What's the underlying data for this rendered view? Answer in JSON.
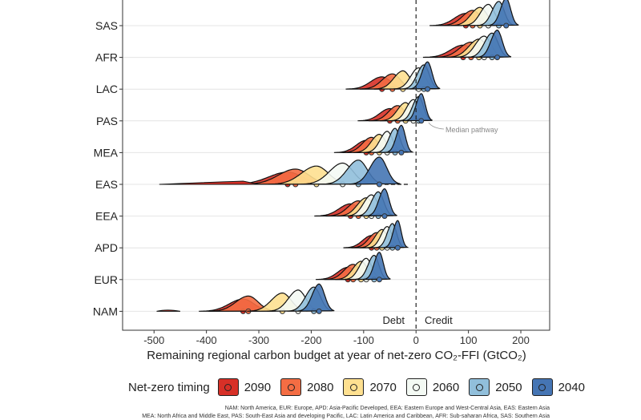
{
  "chart_data": {
    "type": "ridgeline",
    "title": "",
    "xlabel": "Remaining regional carbon budget at year of net-zero CO₂-FFI (GtCO₂)",
    "xlim": [
      -560,
      255
    ],
    "x_ticks": [
      -500,
      -400,
      -300,
      -200,
      -100,
      0,
      100,
      200
    ],
    "x_tick_labels": [
      "-500",
      "-400",
      "-300",
      "-200",
      "-100",
      "0",
      "100",
      "200"
    ],
    "regions": [
      "SAS",
      "AFR",
      "LAC",
      "PAS",
      "MEA",
      "EAS",
      "EEA",
      "APD",
      "EUR",
      "NAM"
    ],
    "annotations": {
      "debt": "Debt",
      "credit": "Credit",
      "median": "Median pathway"
    },
    "legend_title": "Net-zero timing",
    "series": [
      {
        "name": "2090",
        "color": "#d73027",
        "medians": [
          95,
          90,
          -65,
          -50,
          -95,
          -245,
          -125,
          -85,
          -130,
          -330
        ]
      },
      {
        "name": "2080",
        "color": "#f46d43",
        "medians": [
          108,
          105,
          -45,
          -35,
          -85,
          -230,
          -110,
          -75,
          -120,
          -320
        ]
      },
      {
        "name": "2070",
        "color": "#fee090",
        "medians": [
          122,
          120,
          -25,
          -20,
          -70,
          -190,
          -95,
          -65,
          -105,
          -255
        ]
      },
      {
        "name": "2060",
        "color": "#f4faf4",
        "medians": [
          138,
          130,
          5,
          -5,
          -55,
          -140,
          -85,
          -55,
          -95,
          -225
        ]
      },
      {
        "name": "2050",
        "color": "#91bfdb",
        "medians": [
          158,
          145,
          15,
          5,
          -40,
          -110,
          -72,
          -45,
          -80,
          -195
        ]
      },
      {
        "name": "2040",
        "color": "#4575b4",
        "medians": [
          172,
          155,
          22,
          10,
          -28,
          -70,
          -60,
          -35,
          -70,
          -185
        ]
      }
    ],
    "footnote_lines": [
      "NAM: North America, EUR: Europe, APD: Asia-Pacific Developed, EEA: Eastern Europe and West-Central Asia, EAS: Eastern Asia",
      "MEA: North Africa and Middle East, PAS: South-East Asia and developing Pacific, LAC: Latin America and Caribbean, AFR: Sub-saharan Africa, SAS: Southern Asia"
    ]
  }
}
